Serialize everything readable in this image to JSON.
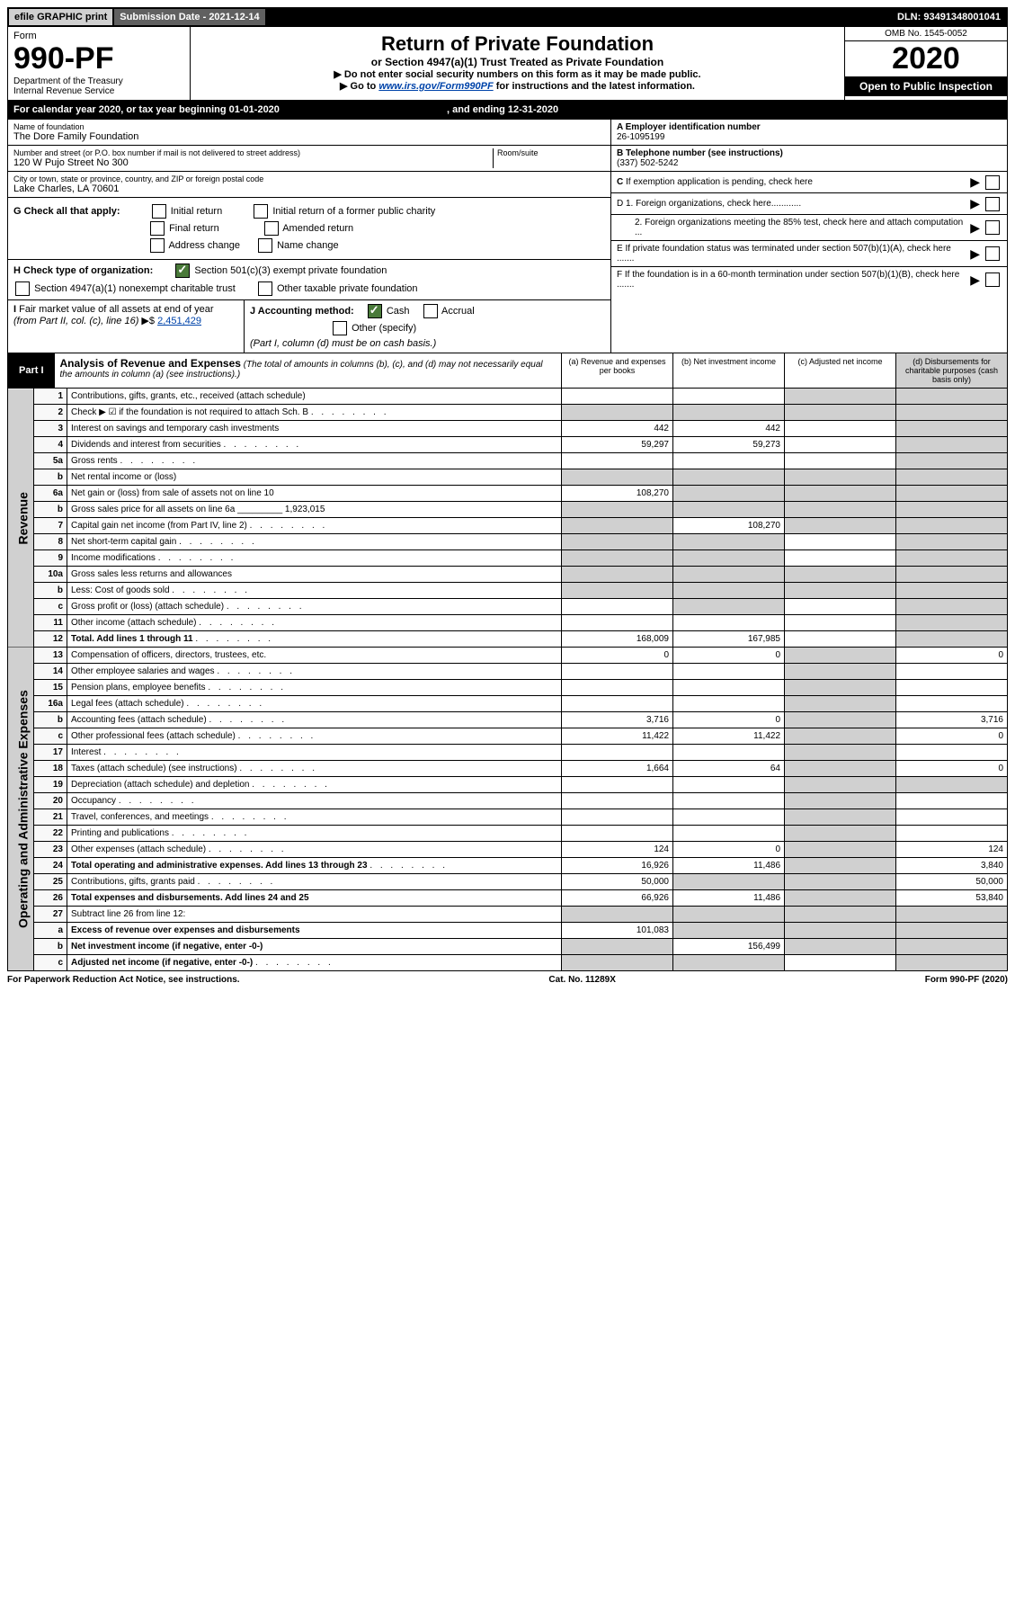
{
  "topbar": {
    "efile": "efile GRAPHIC print",
    "submission": "Submission Date - 2021-12-14",
    "dln": "DLN: 93491348001041"
  },
  "header": {
    "form_label": "Form",
    "form_number": "990-PF",
    "dept": "Department of the Treasury",
    "irs": "Internal Revenue Service",
    "title": "Return of Private Foundation",
    "subtitle": "or Section 4947(a)(1) Trust Treated as Private Foundation",
    "note1": "▶ Do not enter social security numbers on this form as it may be made public.",
    "note2_pre": "▶ Go to ",
    "note2_link": "www.irs.gov/Form990PF",
    "note2_post": " for instructions and the latest information.",
    "omb": "OMB No. 1545-0052",
    "year": "2020",
    "opentopublic": "Open to Public Inspection"
  },
  "calyear": {
    "pre": "For calendar year 2020, or tax year beginning 01-01-2020",
    "mid": ", and ending 12-31-2020"
  },
  "entity": {
    "name_label": "Name of foundation",
    "name": "The Dore Family Foundation",
    "addr_label": "Number and street (or P.O. box number if mail is not delivered to street address)",
    "addr": "120 W Pujo Street No 300",
    "room_label": "Room/suite",
    "city_label": "City or town, state or province, country, and ZIP or foreign postal code",
    "city": "Lake Charles, LA  70601",
    "a_label": "A Employer identification number",
    "a_val": "26-1095199",
    "b_label": "B Telephone number (see instructions)",
    "b_val": "(337) 502-5242",
    "c_label": "C If exemption application is pending, check here"
  },
  "g": {
    "label": "G Check all that apply:",
    "initial": "Initial return",
    "initial_former": "Initial return of a former public charity",
    "final": "Final return",
    "amended": "Amended return",
    "addr_change": "Address change",
    "name_change": "Name change"
  },
  "h": {
    "label": "H Check type of organization:",
    "s501c3": "Section 501(c)(3) exempt private foundation",
    "s4947": "Section 4947(a)(1) nonexempt charitable trust",
    "other_taxable": "Other taxable private foundation"
  },
  "i": {
    "label": "I Fair market value of all assets at end of year (from Part II, col. (c), line 16) ▶$ ",
    "val": "2,451,429"
  },
  "j": {
    "label": "J Accounting method:",
    "cash": "Cash",
    "accrual": "Accrual",
    "other": "Other (specify)",
    "note": "(Part I, column (d) must be on cash basis.)"
  },
  "d": {
    "d1": "D 1. Foreign organizations, check here............",
    "d2": "2. Foreign organizations meeting the 85% test, check here and attach computation ...",
    "e": "E  If private foundation status was terminated under section 507(b)(1)(A), check here .......",
    "f": "F  If the foundation is in a 60-month termination under section 507(b)(1)(B), check here ......."
  },
  "part1": {
    "label": "Part I",
    "title": "Analysis of Revenue and Expenses",
    "note": " (The total of amounts in columns (b), (c), and (d) may not necessarily equal the amounts in column (a) (see instructions).)",
    "col_a": "(a)   Revenue and expenses per books",
    "col_b": "(b)  Net investment income",
    "col_c": "(c)  Adjusted net income",
    "col_d": "(d)  Disbursements for charitable purposes (cash basis only)"
  },
  "sidelabels": {
    "revenue": "Revenue",
    "expenses": "Operating and Administrative Expenses"
  },
  "lines": [
    {
      "n": "1",
      "d": "Contributions, gifts, grants, etc., received (attach schedule)",
      "a": "",
      "b": "",
      "c": "shaded",
      "dd": "shaded"
    },
    {
      "n": "2",
      "d": "Check ▶ ☑ if the foundation is not required to attach Sch. B",
      "dots": true,
      "a": "shaded",
      "b": "shaded",
      "c": "shaded",
      "dd": "shaded"
    },
    {
      "n": "3",
      "d": "Interest on savings and temporary cash investments",
      "a": "442",
      "b": "442",
      "c": "",
      "dd": "shaded"
    },
    {
      "n": "4",
      "d": "Dividends and interest from securities",
      "dots": true,
      "a": "59,297",
      "b": "59,273",
      "c": "",
      "dd": "shaded"
    },
    {
      "n": "5a",
      "d": "Gross rents",
      "dots": true,
      "a": "",
      "b": "",
      "c": "",
      "dd": "shaded"
    },
    {
      "n": "b",
      "d": "Net rental income or (loss)",
      "a": "shaded",
      "b": "shaded",
      "c": "shaded",
      "dd": "shaded"
    },
    {
      "n": "6a",
      "d": "Net gain or (loss) from sale of assets not on line 10",
      "a": "108,270",
      "b": "shaded",
      "c": "shaded",
      "dd": "shaded"
    },
    {
      "n": "b",
      "d": "Gross sales price for all assets on line 6a _________ 1,923,015",
      "a": "shaded",
      "b": "shaded",
      "c": "shaded",
      "dd": "shaded"
    },
    {
      "n": "7",
      "d": "Capital gain net income (from Part IV, line 2)",
      "dots": true,
      "a": "shaded",
      "b": "108,270",
      "c": "shaded",
      "dd": "shaded"
    },
    {
      "n": "8",
      "d": "Net short-term capital gain",
      "dots": true,
      "a": "shaded",
      "b": "shaded",
      "c": "",
      "dd": "shaded"
    },
    {
      "n": "9",
      "d": "Income modifications",
      "dots": true,
      "a": "shaded",
      "b": "shaded",
      "c": "",
      "dd": "shaded"
    },
    {
      "n": "10a",
      "d": "Gross sales less returns and allowances",
      "a": "shaded",
      "b": "shaded",
      "c": "shaded",
      "dd": "shaded"
    },
    {
      "n": "b",
      "d": "Less: Cost of goods sold",
      "dots": true,
      "a": "shaded",
      "b": "shaded",
      "c": "shaded",
      "dd": "shaded"
    },
    {
      "n": "c",
      "d": "Gross profit or (loss) (attach schedule)",
      "dots": true,
      "a": "",
      "b": "shaded",
      "c": "",
      "dd": "shaded"
    },
    {
      "n": "11",
      "d": "Other income (attach schedule)",
      "dots": true,
      "a": "",
      "b": "",
      "c": "",
      "dd": "shaded"
    },
    {
      "n": "12",
      "d": "Total. Add lines 1 through 11",
      "dots": true,
      "bold": true,
      "a": "168,009",
      "b": "167,985",
      "c": "",
      "dd": "shaded"
    }
  ],
  "exp_lines": [
    {
      "n": "13",
      "d": "Compensation of officers, directors, trustees, etc.",
      "a": "0",
      "b": "0",
      "c": "shaded",
      "dd": "0"
    },
    {
      "n": "14",
      "d": "Other employee salaries and wages",
      "dots": true,
      "a": "",
      "b": "",
      "c": "shaded",
      "dd": ""
    },
    {
      "n": "15",
      "d": "Pension plans, employee benefits",
      "dots": true,
      "a": "",
      "b": "",
      "c": "shaded",
      "dd": ""
    },
    {
      "n": "16a",
      "d": "Legal fees (attach schedule)",
      "dots": true,
      "a": "",
      "b": "",
      "c": "shaded",
      "dd": ""
    },
    {
      "n": "b",
      "d": "Accounting fees (attach schedule)",
      "dots": true,
      "a": "3,716",
      "b": "0",
      "c": "shaded",
      "dd": "3,716"
    },
    {
      "n": "c",
      "d": "Other professional fees (attach schedule)",
      "dots": true,
      "a": "11,422",
      "b": "11,422",
      "c": "shaded",
      "dd": "0"
    },
    {
      "n": "17",
      "d": "Interest",
      "dots": true,
      "a": "",
      "b": "",
      "c": "shaded",
      "dd": ""
    },
    {
      "n": "18",
      "d": "Taxes (attach schedule) (see instructions)",
      "dots": true,
      "a": "1,664",
      "b": "64",
      "c": "shaded",
      "dd": "0"
    },
    {
      "n": "19",
      "d": "Depreciation (attach schedule) and depletion",
      "dots": true,
      "a": "",
      "b": "",
      "c": "shaded",
      "dd": "shaded"
    },
    {
      "n": "20",
      "d": "Occupancy",
      "dots": true,
      "a": "",
      "b": "",
      "c": "shaded",
      "dd": ""
    },
    {
      "n": "21",
      "d": "Travel, conferences, and meetings",
      "dots": true,
      "a": "",
      "b": "",
      "c": "shaded",
      "dd": ""
    },
    {
      "n": "22",
      "d": "Printing and publications",
      "dots": true,
      "a": "",
      "b": "",
      "c": "shaded",
      "dd": ""
    },
    {
      "n": "23",
      "d": "Other expenses (attach schedule)",
      "dots": true,
      "a": "124",
      "b": "0",
      "c": "shaded",
      "dd": "124"
    },
    {
      "n": "24",
      "d": "Total operating and administrative expenses. Add lines 13 through 23",
      "dots": true,
      "bold": true,
      "a": "16,926",
      "b": "11,486",
      "c": "shaded",
      "dd": "3,840"
    },
    {
      "n": "25",
      "d": "Contributions, gifts, grants paid",
      "dots": true,
      "a": "50,000",
      "b": "shaded",
      "c": "shaded",
      "dd": "50,000"
    },
    {
      "n": "26",
      "d": "Total expenses and disbursements. Add lines 24 and 25",
      "bold": true,
      "a": "66,926",
      "b": "11,486",
      "c": "shaded",
      "dd": "53,840"
    },
    {
      "n": "27",
      "d": "Subtract line 26 from line 12:",
      "a": "shaded",
      "b": "shaded",
      "c": "shaded",
      "dd": "shaded"
    },
    {
      "n": "a",
      "d": "Excess of revenue over expenses and disbursements",
      "bold": true,
      "a": "101,083",
      "b": "shaded",
      "c": "shaded",
      "dd": "shaded"
    },
    {
      "n": "b",
      "d": "Net investment income (if negative, enter -0-)",
      "bold": true,
      "a": "shaded",
      "b": "156,499",
      "c": "shaded",
      "dd": "shaded"
    },
    {
      "n": "c",
      "d": "Adjusted net income (if negative, enter -0-)",
      "dots": true,
      "bold": true,
      "a": "shaded",
      "b": "shaded",
      "c": "",
      "dd": "shaded"
    }
  ],
  "footer": {
    "left": "For Paperwork Reduction Act Notice, see instructions.",
    "mid": "Cat. No. 11289X",
    "right": "Form 990-PF (2020)"
  }
}
